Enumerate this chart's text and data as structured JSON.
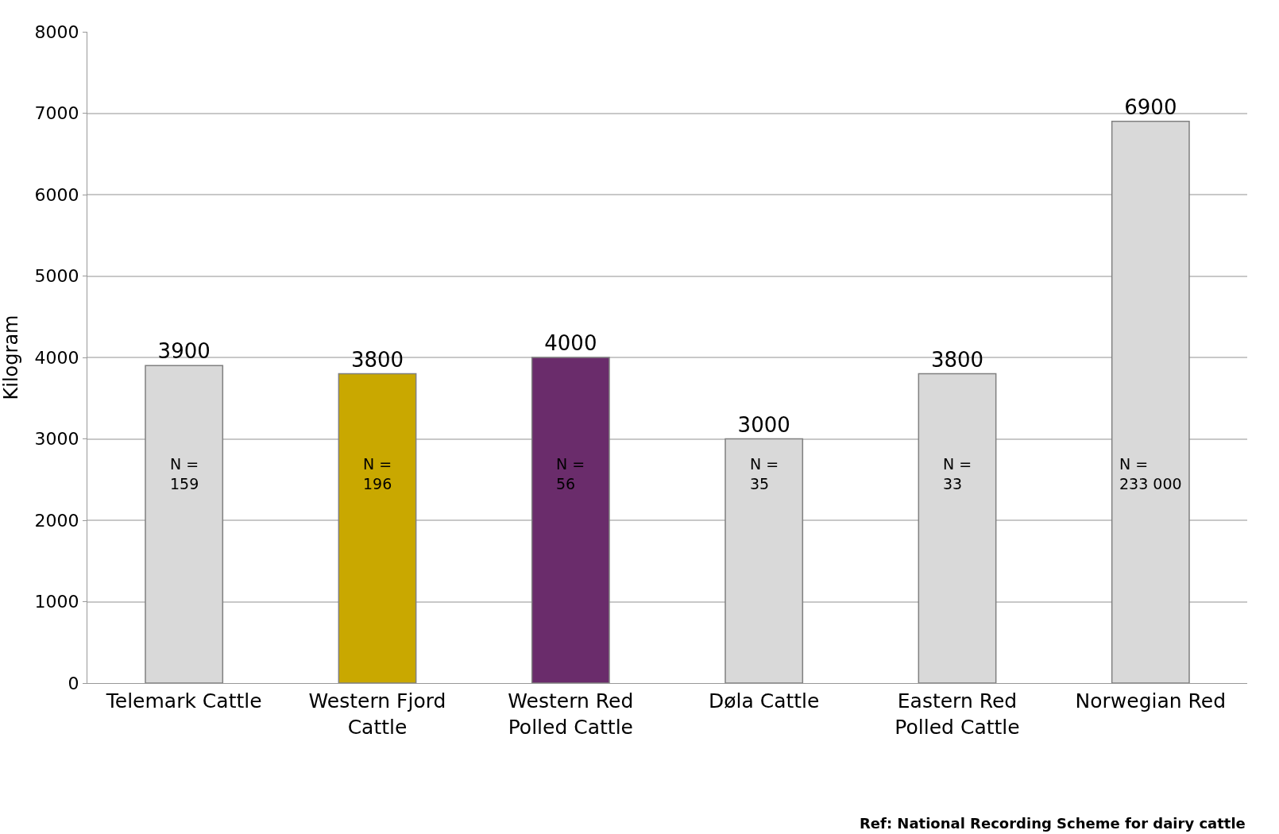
{
  "chart_data": {
    "type": "bar",
    "ylabel": "Kilogram",
    "categories": [
      "Telemark Cattle",
      "Western Fjord Cattle",
      "Western Red Polled Cattle",
      "Døla Cattle",
      "Eastern Red Polled Cattle",
      "Norwegian Red"
    ],
    "values": [
      3900,
      3800,
      4000,
      3000,
      3800,
      6900
    ],
    "colors": [
      "#d9d9d9",
      "#c9a800",
      "#6a2c6b",
      "#d9d9d9",
      "#d9d9d9",
      "#d9d9d9"
    ],
    "ylim": [
      0,
      8000
    ],
    "yticks": [
      0,
      1000,
      2000,
      3000,
      4000,
      5000,
      6000,
      7000,
      8000
    ],
    "grid": "y",
    "legend": false,
    "data_labels": true,
    "annotations": [
      "N =\n159",
      "N =\n196",
      "N =\n56",
      "N =\n35",
      "N =\n33",
      "N =\n233 000",
      "Ref: National Recording Scheme for dairy cattle"
    ]
  }
}
